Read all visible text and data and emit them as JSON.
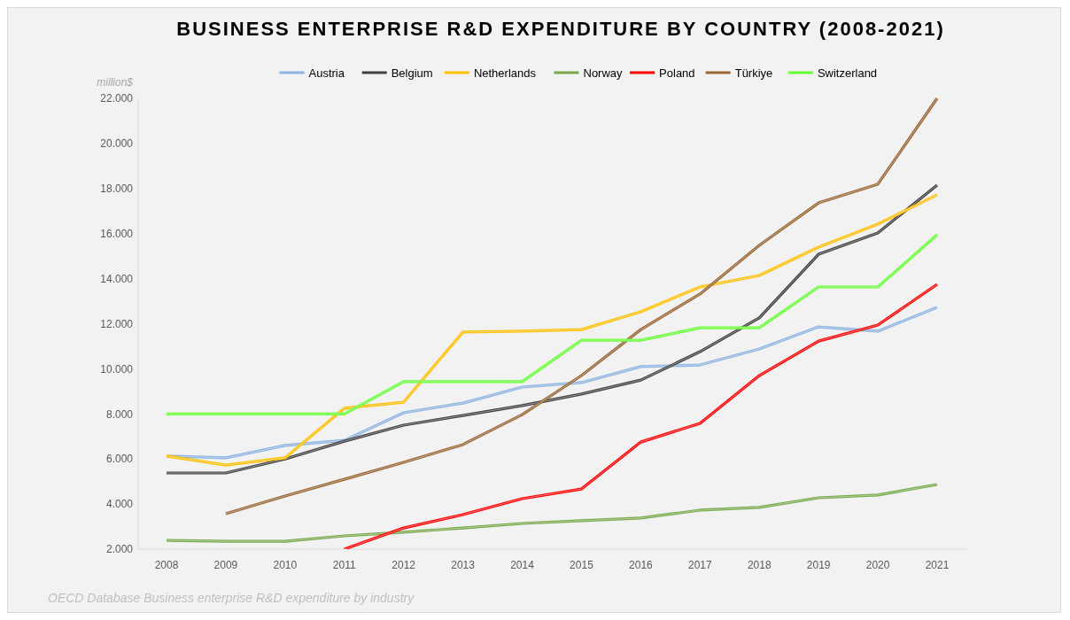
{
  "chart_data": {
    "type": "line",
    "title": "BUSINESS ENTERPRISE R&D EXPENDITURE BY COUNTRY (2008-2021)",
    "ylabel": "million$",
    "categories": [
      "2008",
      "2009",
      "2010",
      "2011",
      "2012",
      "2013",
      "2014",
      "2015",
      "2016",
      "2017",
      "2018",
      "2019",
      "2020",
      "2021"
    ],
    "ylim": [
      2000,
      22000
    ],
    "yticks": [
      {
        "value": 2000,
        "label": "2.000"
      },
      {
        "value": 4000,
        "label": "4.000"
      },
      {
        "value": 6000,
        "label": "6.000"
      },
      {
        "value": 8000,
        "label": "8.000"
      },
      {
        "value": 10000,
        "label": "10.000"
      },
      {
        "value": 12000,
        "label": "12.000"
      },
      {
        "value": 14000,
        "label": "14.000"
      },
      {
        "value": 16000,
        "label": "16.000"
      },
      {
        "value": 18000,
        "label": "18.000"
      },
      {
        "value": 20000,
        "label": "20.000"
      },
      {
        "value": 22000,
        "label": "22.000"
      }
    ],
    "legend": "top",
    "series": [
      {
        "name": "Austria",
        "color": "#8db4e2",
        "values": [
          6130,
          6050,
          6600,
          6830,
          8050,
          8480,
          9190,
          9390,
          10100,
          10170,
          10880,
          11860,
          11670,
          12730
        ]
      },
      {
        "name": "Belgium",
        "color": "#404040",
        "values": [
          5380,
          5380,
          6000,
          6790,
          7500,
          7930,
          8370,
          8880,
          9500,
          10760,
          12260,
          15080,
          16030,
          18150
        ]
      },
      {
        "name": "Netherlands",
        "color": "#ffc000",
        "values": [
          6130,
          5730,
          6050,
          8250,
          8520,
          11630,
          11670,
          11740,
          12530,
          13630,
          14140,
          15400,
          16420,
          17720
        ]
      },
      {
        "name": "Norway",
        "color": "#77a94a",
        "values": [
          2390,
          2350,
          2350,
          2590,
          2750,
          2940,
          3140,
          3260,
          3380,
          3730,
          3850,
          4280,
          4400,
          4870
        ]
      },
      {
        "name": "Poland",
        "color": "#ff0000",
        "values": [
          null,
          null,
          null,
          2000,
          2940,
          3530,
          4240,
          4670,
          6750,
          7580,
          9700,
          11230,
          11940,
          13750
        ]
      },
      {
        "name": "Türkiye",
        "color": "#996633",
        "values": [
          null,
          3570,
          4360,
          5100,
          5850,
          6640,
          7970,
          9700,
          11740,
          13320,
          15480,
          17360,
          18190,
          22000
        ]
      },
      {
        "name": "Switzerland",
        "color": "#66ff33",
        "values": [
          8000,
          8000,
          8000,
          8000,
          9430,
          9430,
          9430,
          11270,
          11270,
          11820,
          11820,
          13630,
          13630,
          15950
        ]
      }
    ],
    "annotations": [
      "OECD Database Business enterprise R&D expenditure by industry"
    ]
  }
}
